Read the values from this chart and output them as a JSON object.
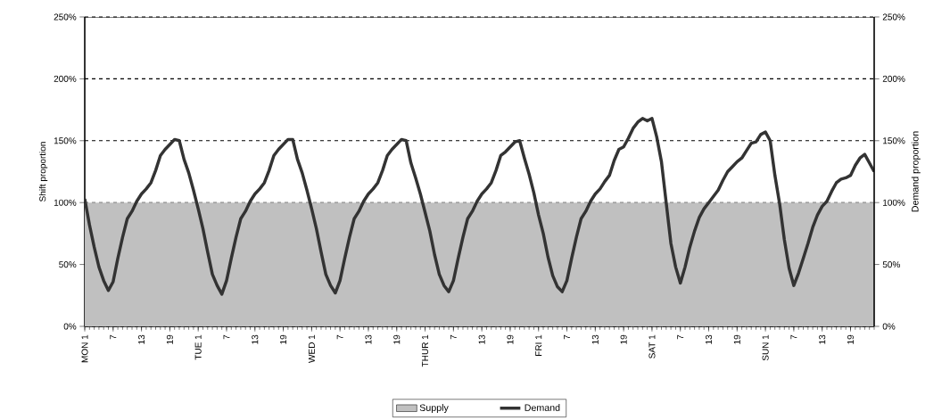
{
  "chart_data": {
    "type": "line",
    "ylabel": "Shift proportion",
    "y2label": "Demand proportion",
    "categories": [
      "MON 1",
      null,
      null,
      null,
      null,
      null,
      "7",
      null,
      null,
      null,
      null,
      null,
      "13",
      null,
      null,
      null,
      null,
      null,
      "19",
      null,
      null,
      null,
      null,
      null,
      "TUE 1",
      null,
      null,
      null,
      null,
      null,
      "7",
      null,
      null,
      null,
      null,
      null,
      "13",
      null,
      null,
      null,
      null,
      null,
      "19",
      null,
      null,
      null,
      null,
      null,
      "WED 1",
      null,
      null,
      null,
      null,
      null,
      "7",
      null,
      null,
      null,
      null,
      null,
      "13",
      null,
      null,
      null,
      null,
      null,
      "19",
      null,
      null,
      null,
      null,
      null,
      "THUR 1",
      null,
      null,
      null,
      null,
      null,
      "7",
      null,
      null,
      null,
      null,
      null,
      "13",
      null,
      null,
      null,
      null,
      null,
      "19",
      null,
      null,
      null,
      null,
      null,
      "FRI 1",
      null,
      null,
      null,
      null,
      null,
      "7",
      null,
      null,
      null,
      null,
      null,
      "13",
      null,
      null,
      null,
      null,
      null,
      "19",
      null,
      null,
      null,
      null,
      null,
      "SAT 1",
      null,
      null,
      null,
      null,
      null,
      "7",
      null,
      null,
      null,
      null,
      null,
      "13",
      null,
      null,
      null,
      null,
      null,
      "19",
      null,
      null,
      null,
      null,
      null,
      "SUN 1",
      null,
      null,
      null,
      null,
      null,
      "7",
      null,
      null,
      null,
      null,
      null,
      "13",
      null,
      null,
      null,
      null,
      null,
      "19",
      null,
      null,
      null,
      null,
      null
    ],
    "ylim": [
      0,
      250
    ],
    "yticks": [
      {
        "value": 0,
        "label": "0%"
      },
      {
        "value": 50,
        "label": "50%"
      },
      {
        "value": 100,
        "label": "100%"
      },
      {
        "value": 150,
        "label": "150%"
      },
      {
        "value": 200,
        "label": "200%"
      },
      {
        "value": 250,
        "label": "250%"
      }
    ],
    "y2lim": [
      0,
      250
    ],
    "y2ticks": [
      {
        "value": 0,
        "label": "0%"
      },
      {
        "value": 50,
        "label": "50%"
      },
      {
        "value": 100,
        "label": "100%"
      },
      {
        "value": 150,
        "label": "150%"
      },
      {
        "value": 200,
        "label": "200%"
      },
      {
        "value": 250,
        "label": "250%"
      }
    ],
    "grid": "y",
    "legend": "bottom",
    "series": [
      {
        "name": "Supply",
        "type": "area",
        "color": "#c0c0c0",
        "values": [
          100,
          100,
          100,
          100,
          100,
          100,
          100,
          100,
          100,
          100,
          100,
          100,
          100,
          100,
          100,
          100,
          100,
          100,
          100,
          100,
          100,
          100,
          100,
          100,
          100,
          100,
          100,
          100,
          100,
          100,
          100,
          100,
          100,
          100,
          100,
          100,
          100,
          100,
          100,
          100,
          100,
          100,
          100,
          100,
          100,
          100,
          100,
          100,
          100,
          100,
          100,
          100,
          100,
          100,
          100,
          100,
          100,
          100,
          100,
          100,
          100,
          100,
          100,
          100,
          100,
          100,
          100,
          100,
          100,
          100,
          100,
          100,
          100,
          100,
          100,
          100,
          100,
          100,
          100,
          100,
          100,
          100,
          100,
          100,
          100,
          100,
          100,
          100,
          100,
          100,
          100,
          100,
          100,
          100,
          100,
          100,
          100,
          100,
          100,
          100,
          100,
          100,
          100,
          100,
          100,
          100,
          100,
          100,
          100,
          100,
          100,
          100,
          100,
          100,
          100,
          100,
          100,
          100,
          100,
          100,
          100,
          100,
          100,
          100,
          100,
          100,
          100,
          100,
          100,
          100,
          100,
          100,
          100,
          100,
          100,
          100,
          100,
          100,
          100,
          100,
          100,
          100,
          100,
          100,
          100,
          100,
          100,
          100,
          100,
          100,
          100,
          100,
          100,
          100,
          100,
          100,
          100,
          100,
          100,
          100,
          100,
          100,
          100,
          100,
          100,
          100,
          100,
          100
        ]
      },
      {
        "name": "Demand",
        "color": "#333333",
        "values": [
          103,
          82,
          64,
          48,
          37,
          29,
          36,
          55,
          72,
          87,
          93,
          101,
          107,
          111,
          116,
          126,
          138,
          143,
          147,
          151,
          150,
          135,
          124,
          110,
          95,
          79,
          60,
          42,
          33,
          26,
          37,
          55,
          72,
          87,
          93,
          101,
          107,
          111,
          116,
          126,
          138,
          143,
          147,
          151,
          151,
          135,
          124,
          110,
          95,
          79,
          60,
          42,
          33,
          27,
          37,
          55,
          72,
          87,
          93,
          101,
          107,
          111,
          116,
          126,
          138,
          143,
          147,
          151,
          150,
          132,
          120,
          107,
          92,
          77,
          58,
          42,
          33,
          28,
          37,
          55,
          72,
          87,
          93,
          101,
          107,
          111,
          116,
          126,
          138,
          141,
          145,
          149,
          150,
          136,
          123,
          108,
          90,
          75,
          56,
          41,
          32,
          28,
          37,
          55,
          72,
          87,
          93,
          101,
          107,
          111,
          117,
          122,
          134,
          143,
          145,
          152,
          160,
          165,
          168,
          166,
          168,
          153,
          133,
          100,
          67,
          48,
          35,
          48,
          64,
          77,
          88,
          95,
          100,
          105,
          110,
          118,
          125,
          129,
          133,
          136,
          142,
          148,
          149,
          155,
          157,
          150,
          122,
          99,
          70,
          47,
          33,
          43,
          55,
          67,
          80,
          90,
          97,
          101,
          109,
          116,
          119,
          120,
          122,
          130,
          136,
          139,
          132,
          125
        ]
      }
    ]
  }
}
